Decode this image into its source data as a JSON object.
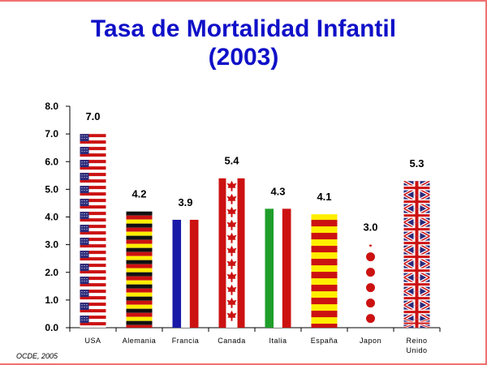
{
  "title_line1": "Tasa de Mortalidad Infantil",
  "title_line2": "(2003)",
  "source": "OCDE, 2005",
  "chart_data": {
    "type": "bar",
    "title": "Tasa de Mortalidad Infantil (2003)",
    "categories": [
      "USA",
      "Alemania",
      "Francia",
      "Canada",
      "Italia",
      "España",
      "Japon",
      [
        "Reino",
        "Unido"
      ]
    ],
    "values": [
      7.0,
      4.2,
      3.9,
      5.4,
      4.3,
      4.1,
      3.0,
      5.3
    ],
    "value_labels": [
      "7.0",
      "4.2",
      "3.9",
      "5.4",
      "4.3",
      "4.1",
      "3.0",
      "5.3"
    ],
    "y_ticks": [
      "0.0",
      "1.0",
      "2.0",
      "3.0",
      "4.0",
      "5.0",
      "6.0",
      "7.0",
      "8.0"
    ],
    "ylim": [
      0,
      8
    ],
    "grid": false,
    "bar_style": [
      "usa-flag",
      "germany-flag",
      "france-flag",
      "canada-flag",
      "italy-flag",
      "spain-flag",
      "japan-flag",
      "uk-flag"
    ],
    "colors": {
      "title": "#1010c8",
      "red": "#cc1111",
      "blue": "#1a1aa8",
      "green": "#1f9e2a",
      "yellow": "#ffee00",
      "black": "#111111",
      "navy": "#2a2a7a",
      "border": "#f07070"
    }
  }
}
